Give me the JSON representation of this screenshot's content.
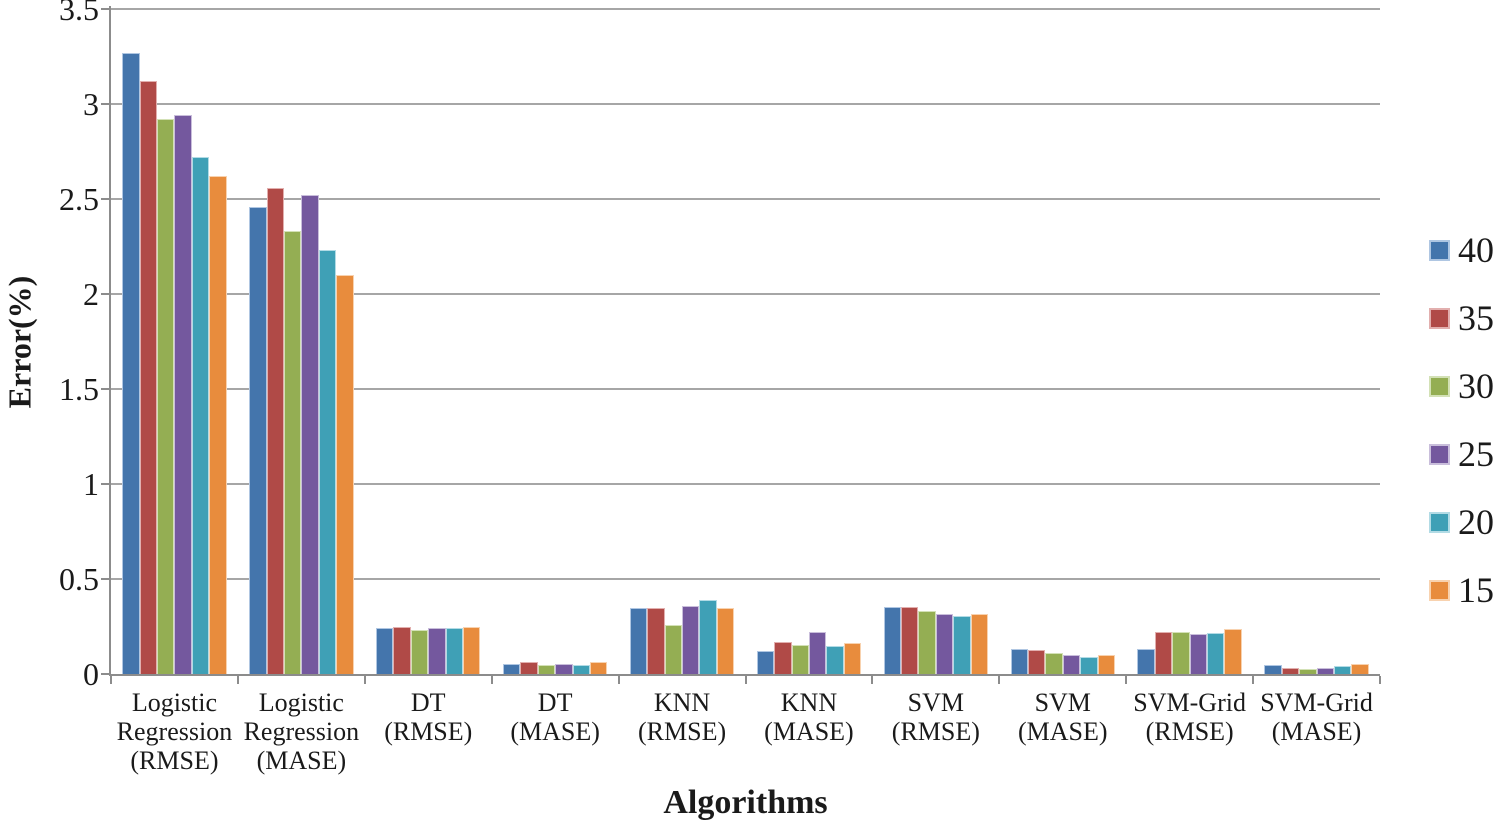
{
  "chart_data": {
    "type": "bar",
    "title": "",
    "xlabel": "Algorithms",
    "ylabel": "Error(%)",
    "ylim": [
      0,
      3.5
    ],
    "ytick_step": 0.5,
    "yticks": [
      "0",
      "0.5",
      "1",
      "1.5",
      "2",
      "2.5",
      "3",
      "3.5"
    ],
    "grid": "horizontal",
    "legend_position": "right",
    "categories": [
      "Logistic Regression (RMSE)",
      "Logistic Regression (MASE)",
      "DT (RMSE)",
      "DT (MASE)",
      "KNN (RMSE)",
      "KNN (MASE)",
      "SVM (RMSE)",
      "SVM (MASE)",
      "SVM-Grid (RMSE)",
      "SVM-Grid (MASE)"
    ],
    "category_label_lines": [
      [
        "Logistic",
        "Regression",
        "(RMSE)"
      ],
      [
        "Logistic",
        "Regression",
        "(MASE)"
      ],
      [
        "DT",
        "(RMSE)"
      ],
      [
        "DT",
        "(MASE)"
      ],
      [
        "KNN",
        "(RMSE)"
      ],
      [
        "KNN",
        "(MASE)"
      ],
      [
        "SVM",
        "(RMSE)"
      ],
      [
        "SVM",
        "(MASE)"
      ],
      [
        "SVM-Grid",
        "(RMSE)"
      ],
      [
        "SVM-Grid",
        "(MASE)"
      ]
    ],
    "series": [
      {
        "name": "40",
        "color": "#4475AC",
        "border_color": "#AFC6E2",
        "values": [
          3.27,
          2.46,
          0.24,
          0.055,
          0.35,
          0.12,
          0.355,
          0.13,
          0.13,
          0.045
        ]
      },
      {
        "name": "35",
        "color": "#B04A47",
        "border_color": "#E2AFAE",
        "values": [
          3.12,
          2.56,
          0.25,
          0.065,
          0.35,
          0.17,
          0.355,
          0.125,
          0.22,
          0.03
        ]
      },
      {
        "name": "30",
        "color": "#94AE53",
        "border_color": "#D3E1B6",
        "values": [
          2.92,
          2.33,
          0.23,
          0.045,
          0.26,
          0.155,
          0.33,
          0.11,
          0.22,
          0.025
        ]
      },
      {
        "name": "25",
        "color": "#74589E",
        "border_color": "#C9BEDB",
        "values": [
          2.94,
          2.52,
          0.24,
          0.055,
          0.36,
          0.22,
          0.315,
          0.1,
          0.21,
          0.03
        ]
      },
      {
        "name": "20",
        "color": "#3FA0B6",
        "border_color": "#B2DBE5",
        "values": [
          2.72,
          2.23,
          0.24,
          0.05,
          0.39,
          0.145,
          0.305,
          0.09,
          0.215,
          0.04
        ]
      },
      {
        "name": "15",
        "color": "#E88C3D",
        "border_color": "#F8D2AF",
        "values": [
          2.62,
          2.1,
          0.25,
          0.065,
          0.35,
          0.165,
          0.315,
          0.1,
          0.235,
          0.055
        ]
      }
    ],
    "colors": {
      "gridline": "#A6A6A6",
      "axis": "#8C8C8C",
      "text": "#1A1A1A",
      "background": "#FFFFFF"
    }
  }
}
